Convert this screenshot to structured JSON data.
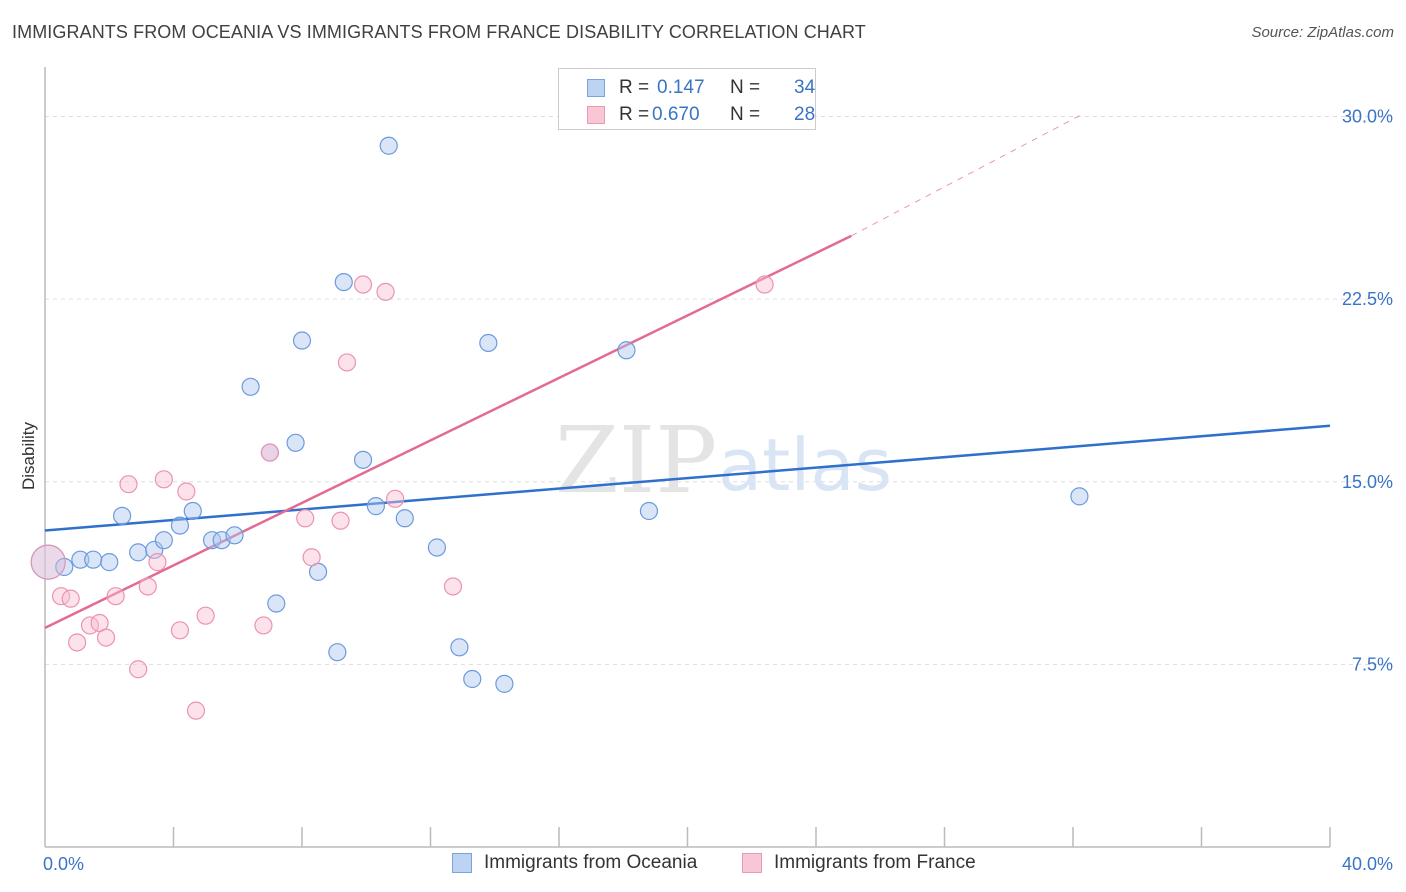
{
  "title": "IMMIGRANTS FROM OCEANIA VS IMMIGRANTS FROM FRANCE DISABILITY CORRELATION CHART",
  "source": "Source: ZipAtlas.com",
  "watermark": {
    "zip": "ZIP",
    "atlas": "atlas"
  },
  "legend": {
    "r_label": "R =",
    "n_label": "N =",
    "series": [
      {
        "name": "Immigrants from Oceania",
        "r": "0.147",
        "n": "34",
        "fill": "#bcd3f4",
        "stroke": "#7aa3de"
      },
      {
        "name": "Immigrants from France",
        "r": "0.670",
        "n": "28",
        "fill": "#f9c6d5",
        "stroke": "#eb9ab3"
      }
    ]
  },
  "colors": {
    "blue_point_fill": "rgba(173,200,240,0.45)",
    "blue_point_stroke": "#6b9bdc",
    "pink_point_fill": "rgba(248,190,208,0.45)",
    "pink_point_stroke": "#ec93b0",
    "blue_line": "#2f6fce",
    "pink_line": "#e26a93",
    "grid": "#dddddd",
    "tick_label": "#3a74c6"
  },
  "chart_data": {
    "type": "scatter",
    "title": "IMMIGRANTS FROM OCEANIA VS IMMIGRANTS FROM FRANCE DISABILITY CORRELATION CHART",
    "xlabel": "",
    "ylabel": "Disability",
    "xlim": [
      0,
      40
    ],
    "ylim": [
      0,
      31.5
    ],
    "x_tick_labels": [
      {
        "value": 0,
        "label": "0.0%"
      },
      {
        "value": 40,
        "label": "40.0%"
      }
    ],
    "y_tick_labels": [
      {
        "value": 7.5,
        "label": "7.5%"
      },
      {
        "value": 15.0,
        "label": "15.0%"
      },
      {
        "value": 22.5,
        "label": "22.5%"
      },
      {
        "value": 30.0,
        "label": "30.0%"
      }
    ],
    "series": [
      {
        "name": "Immigrants from Oceania",
        "color": "blue",
        "points": [
          [
            0.1,
            11.7,
            "big"
          ],
          [
            0.6,
            11.5
          ],
          [
            1.1,
            11.8
          ],
          [
            1.5,
            11.8
          ],
          [
            2.0,
            11.7
          ],
          [
            2.4,
            13.6
          ],
          [
            2.9,
            12.1
          ],
          [
            3.4,
            12.2
          ],
          [
            3.7,
            12.6
          ],
          [
            4.2,
            13.2
          ],
          [
            4.6,
            13.8
          ],
          [
            5.2,
            12.6
          ],
          [
            5.5,
            12.6
          ],
          [
            5.9,
            12.8
          ],
          [
            6.4,
            18.9
          ],
          [
            7.0,
            16.2
          ],
          [
            7.2,
            10.0
          ],
          [
            7.8,
            16.6
          ],
          [
            8.0,
            20.8
          ],
          [
            8.5,
            11.3
          ],
          [
            9.1,
            8.0
          ],
          [
            9.3,
            23.2
          ],
          [
            9.9,
            15.9
          ],
          [
            10.3,
            14.0
          ],
          [
            10.7,
            28.8
          ],
          [
            11.2,
            13.5
          ],
          [
            12.2,
            12.3
          ],
          [
            12.9,
            8.2
          ],
          [
            13.3,
            6.9
          ],
          [
            13.8,
            20.7
          ],
          [
            14.3,
            6.7
          ],
          [
            18.1,
            20.4
          ],
          [
            18.8,
            13.8
          ],
          [
            32.2,
            14.4
          ]
        ]
      },
      {
        "name": "Immigrants from France",
        "color": "pink",
        "points": [
          [
            0.1,
            11.7,
            "big"
          ],
          [
            0.5,
            10.3
          ],
          [
            0.8,
            10.2
          ],
          [
            1.0,
            8.4
          ],
          [
            1.4,
            9.1
          ],
          [
            1.7,
            9.2
          ],
          [
            1.9,
            8.6
          ],
          [
            2.2,
            10.3
          ],
          [
            2.6,
            14.9
          ],
          [
            2.9,
            7.3
          ],
          [
            3.2,
            10.7
          ],
          [
            3.5,
            11.7
          ],
          [
            3.7,
            15.1
          ],
          [
            4.2,
            8.9
          ],
          [
            4.4,
            14.6
          ],
          [
            4.7,
            5.6
          ],
          [
            5.0,
            9.5
          ],
          [
            6.8,
            9.1
          ],
          [
            7.0,
            16.2
          ],
          [
            8.1,
            13.5
          ],
          [
            8.3,
            11.9
          ],
          [
            9.2,
            13.4
          ],
          [
            9.4,
            19.9
          ],
          [
            9.9,
            23.1
          ],
          [
            10.6,
            22.8
          ],
          [
            10.9,
            14.3
          ],
          [
            12.7,
            10.7
          ],
          [
            22.4,
            23.1
          ]
        ]
      }
    ],
    "trend_lines": [
      {
        "series": "Immigrants from Oceania",
        "x": [
          0,
          40
        ],
        "y": [
          13.0,
          17.3
        ],
        "style": "solid"
      },
      {
        "series": "Immigrants from France",
        "x": [
          0,
          25.1
        ],
        "y": [
          9.0,
          25.1
        ],
        "style": "solid"
      },
      {
        "series": "Immigrants from France",
        "x": [
          25.1,
          32.3
        ],
        "y": [
          25.1,
          30.1
        ],
        "style": "dashed"
      }
    ]
  }
}
